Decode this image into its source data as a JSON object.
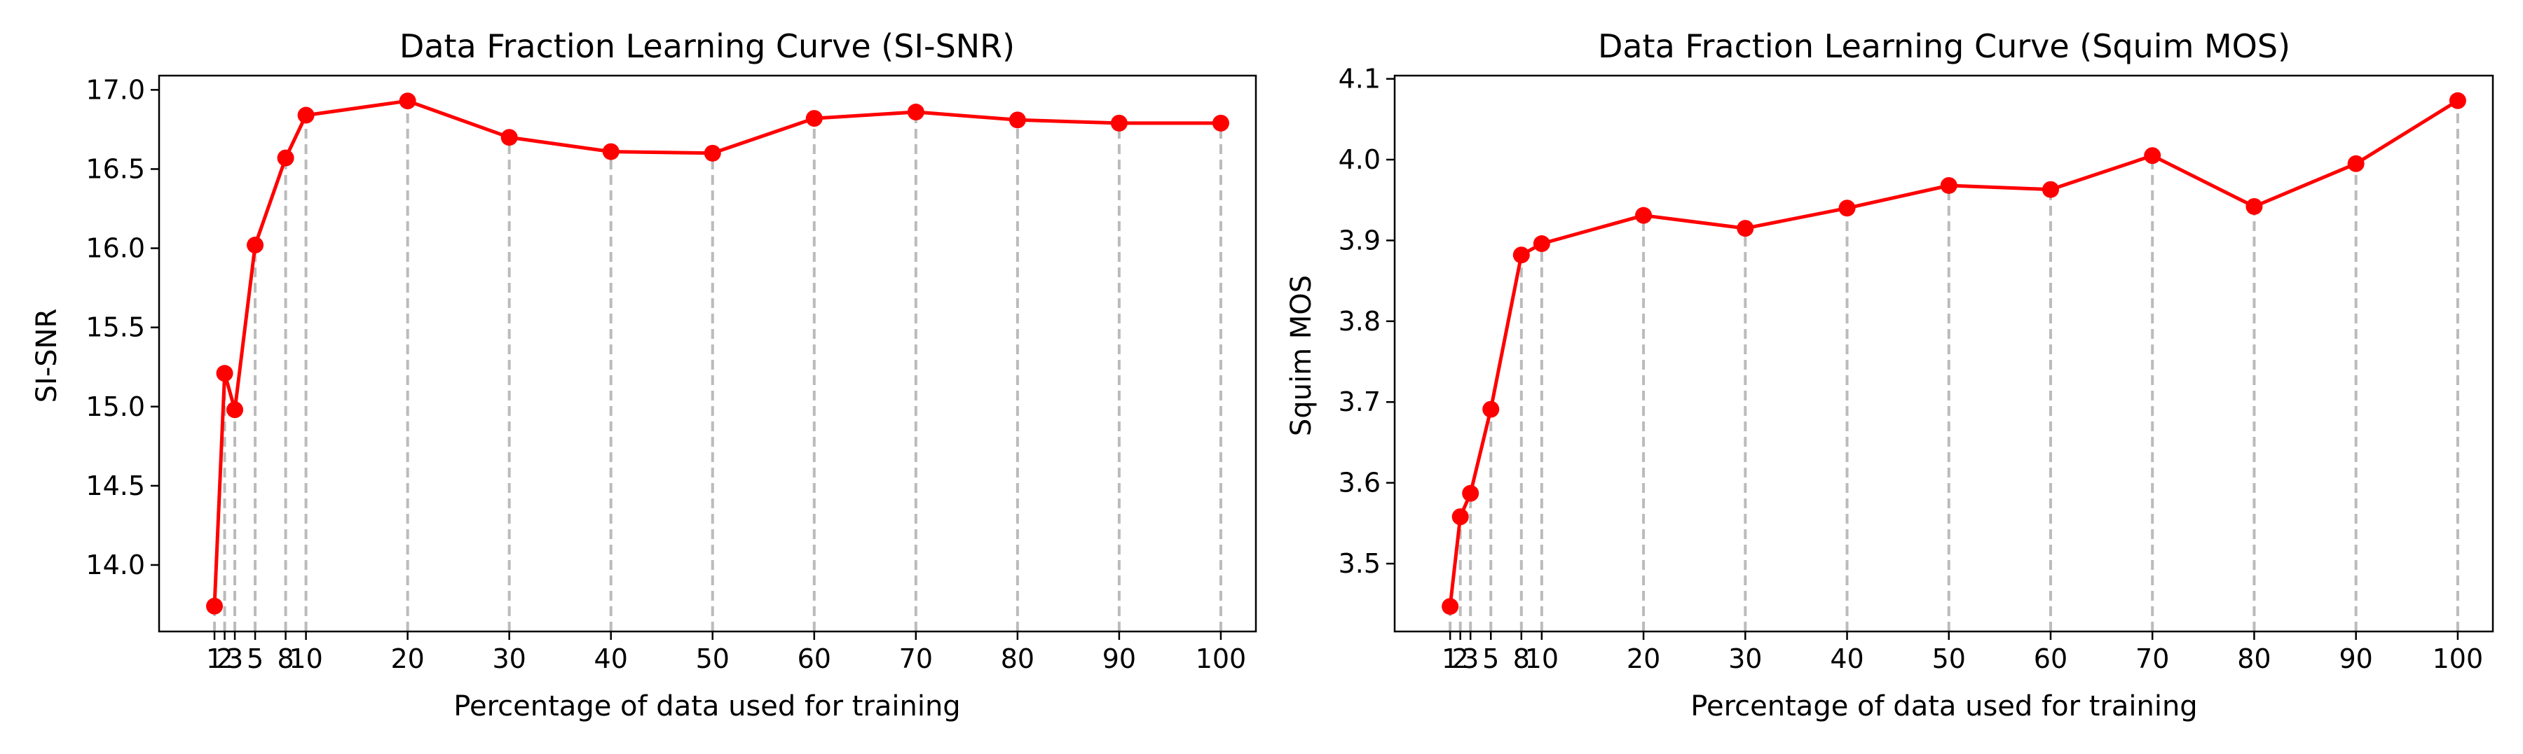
{
  "chart_data": [
    {
      "type": "line",
      "title": "Data Fraction Learning Curve (SI-SNR)",
      "xlabel": "Percentage of data used for training",
      "ylabel": "SI-SNR",
      "x": [
        1,
        2,
        3,
        5,
        8,
        10,
        20,
        30,
        40,
        50,
        60,
        70,
        80,
        90,
        100
      ],
      "xticks": [
        "1",
        "2",
        "3",
        "5",
        "8",
        "10",
        "20",
        "30",
        "40",
        "50",
        "60",
        "70",
        "80",
        "90",
        "100"
      ],
      "series": [
        {
          "values": [
            13.74,
            15.21,
            14.98,
            16.02,
            16.57,
            16.84,
            16.93,
            16.7,
            16.61,
            16.6,
            16.82,
            16.86,
            16.81,
            16.79,
            16.79
          ]
        }
      ],
      "yticks": [
        "14.0",
        "14.5",
        "15.0",
        "15.5",
        "16.0",
        "16.5",
        "17.0"
      ],
      "ytick_values": [
        14.0,
        14.5,
        15.0,
        15.5,
        16.0,
        16.5,
        17.0
      ],
      "xlim": [
        -4.45,
        103.45
      ],
      "ylim": [
        13.58,
        17.09
      ],
      "grid": "vertical dashed drop lines at each x",
      "colors": {
        "line": "#ff0000",
        "marker": "#ff0000",
        "dropline": "#bbbbbb"
      }
    },
    {
      "type": "line",
      "title": "Data Fraction Learning Curve (Squim MOS)",
      "xlabel": "Percentage of data used for training",
      "ylabel": "Squim MOS",
      "x": [
        1,
        2,
        3,
        5,
        8,
        10,
        20,
        30,
        40,
        50,
        60,
        70,
        80,
        90,
        100
      ],
      "xticks": [
        "1",
        "2",
        "3",
        "5",
        "8",
        "10",
        "20",
        "30",
        "40",
        "50",
        "60",
        "70",
        "80",
        "90",
        "100"
      ],
      "series": [
        {
          "values": [
            3.447,
            3.558,
            3.587,
            3.691,
            3.882,
            3.896,
            3.931,
            3.915,
            3.94,
            3.968,
            3.963,
            4.005,
            3.942,
            3.995,
            4.073
          ]
        }
      ],
      "yticks": [
        "3.5",
        "3.6",
        "3.7",
        "3.8",
        "3.9",
        "4.0",
        "4.1"
      ],
      "ytick_values": [
        3.5,
        3.6,
        3.7,
        3.8,
        3.9,
        4.0,
        4.1
      ],
      "xlim": [
        -4.45,
        103.45
      ],
      "ylim": [
        3.416,
        4.104
      ],
      "grid": "vertical dashed drop lines at each x",
      "colors": {
        "line": "#ff0000",
        "marker": "#ff0000",
        "dropline": "#bbbbbb"
      }
    }
  ]
}
